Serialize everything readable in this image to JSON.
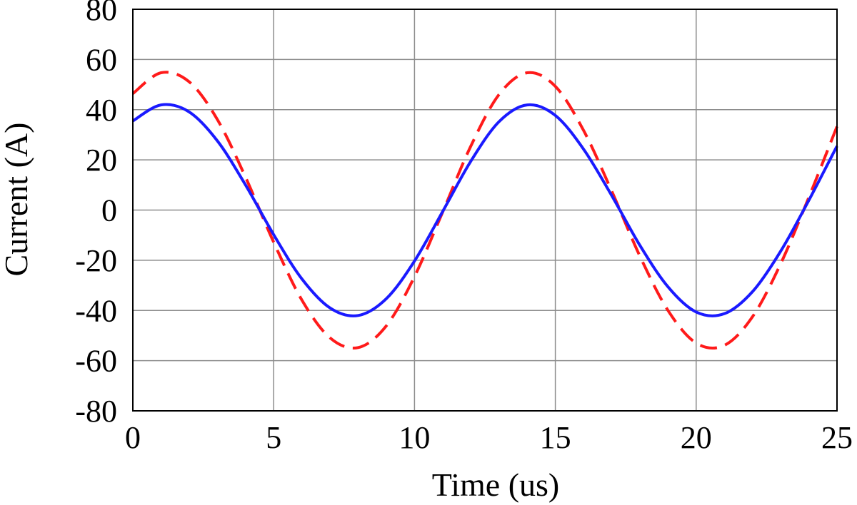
{
  "chart_data": {
    "type": "line",
    "xlabel": "Time (us)",
    "ylabel": "Current (A)",
    "xlim": [
      0,
      25
    ],
    "ylim": [
      -80,
      80
    ],
    "xticks": [
      0,
      5,
      10,
      15,
      20,
      25
    ],
    "yticks": [
      80,
      60,
      40,
      20,
      0,
      -20,
      -40,
      -60,
      -80
    ],
    "grid": true,
    "legend": "none",
    "series": [
      {
        "color": "#1a1aff",
        "style": "solid",
        "x": [
          0,
          1,
          2,
          3,
          4,
          5,
          6,
          7,
          8,
          9,
          10,
          11,
          12,
          13,
          14,
          15,
          16,
          17,
          18,
          19,
          20,
          21,
          22,
          23,
          24,
          25
        ],
        "y": [
          35.5,
          41.9,
          39.1,
          27.6,
          10.0,
          -9.8,
          -27.4,
          -39.0,
          -42.0,
          -35.3,
          -20.3,
          -0.6,
          19.5,
          35.2,
          41.9,
          37.7,
          24.3,
          5.8,
          -14.0,
          -30.6,
          -40.6,
          -41.3,
          -32.5,
          -16.4,
          3.9,
          25.5
        ]
      },
      {
        "color": "#ff1a1a",
        "style": "dashed",
        "x": [
          0,
          1,
          2,
          3,
          4,
          5,
          6,
          7,
          8,
          9,
          10,
          11,
          12,
          13,
          14,
          15,
          16,
          17,
          18,
          19,
          20,
          21,
          22,
          23,
          24,
          25
        ],
        "y": [
          46.4,
          54.7,
          51.1,
          36.1,
          13.1,
          -12.8,
          -35.8,
          -50.9,
          -54.8,
          -46.1,
          -26.5,
          -0.8,
          25.5,
          46.0,
          54.7,
          49.3,
          31.8,
          7.6,
          -18.3,
          -40.0,
          -53.0,
          -53.9,
          -42.5,
          -21.4,
          5.1,
          33.3
        ]
      }
    ]
  }
}
